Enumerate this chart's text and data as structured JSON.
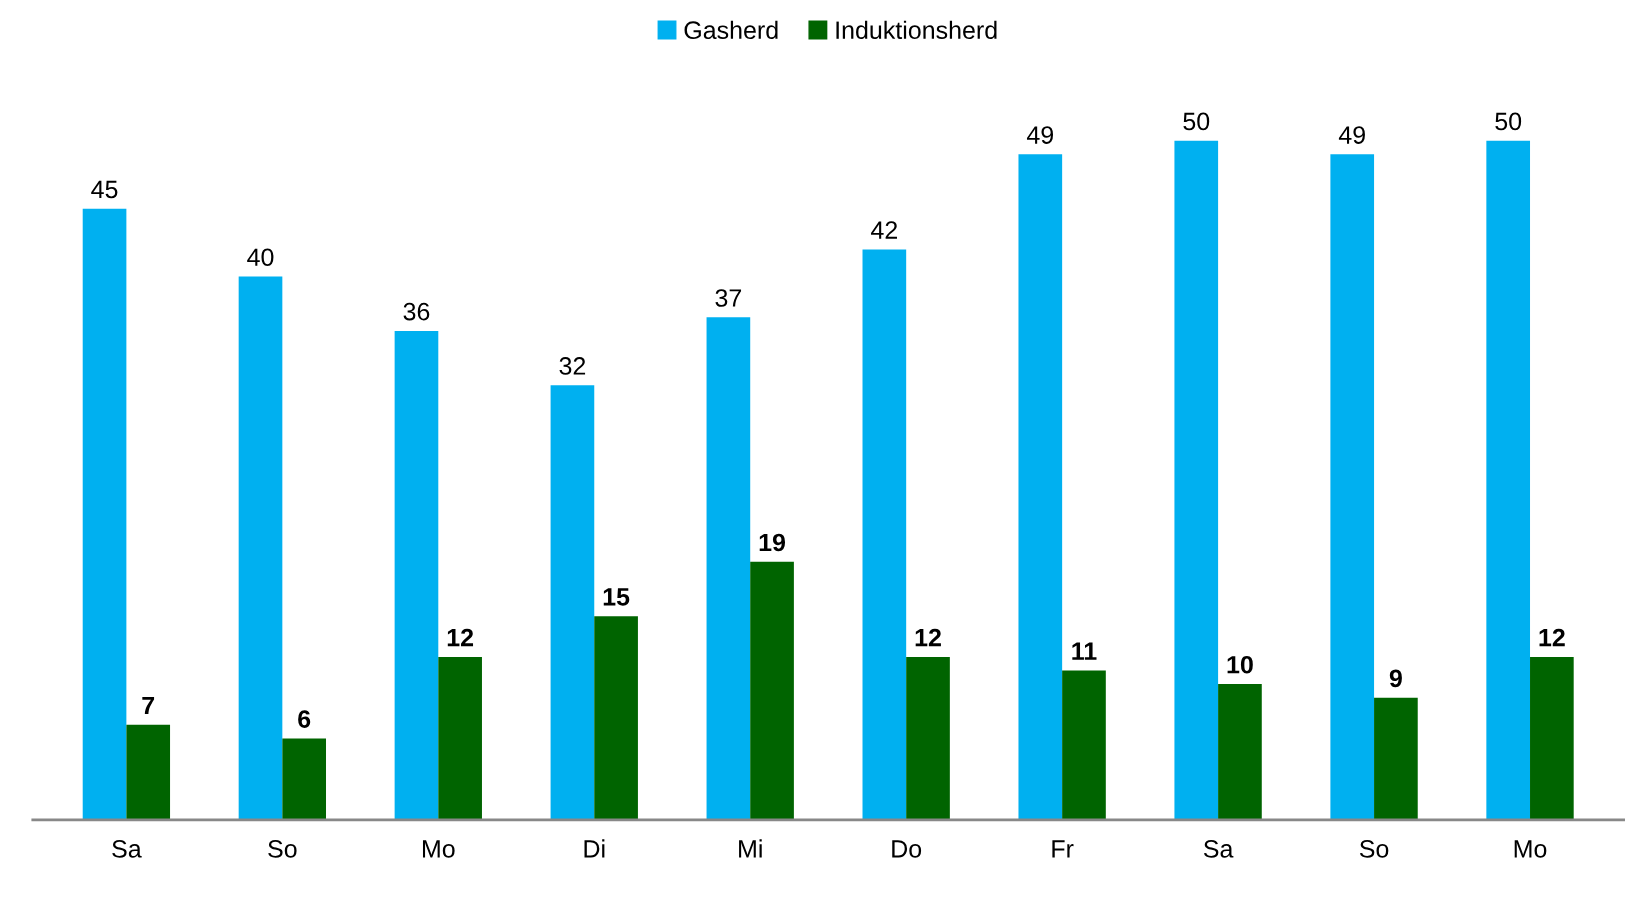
{
  "chart_data": {
    "type": "bar",
    "categories": [
      "Sa",
      "So",
      "Mo",
      "Di",
      "Mi",
      "Do",
      "Fr",
      "Sa",
      "So",
      "Mo"
    ],
    "series": [
      {
        "name": "Gasherd",
        "color": "#00b0f0",
        "values": [
          45,
          40,
          36,
          32,
          37,
          42,
          49,
          50,
          49,
          50
        ]
      },
      {
        "name": "Induktionsherd",
        "color": "#006400",
        "values": [
          7,
          6,
          12,
          15,
          19,
          12,
          11,
          10,
          9,
          12
        ]
      }
    ],
    "data_labels": true,
    "legend": "top",
    "grid": false
  }
}
